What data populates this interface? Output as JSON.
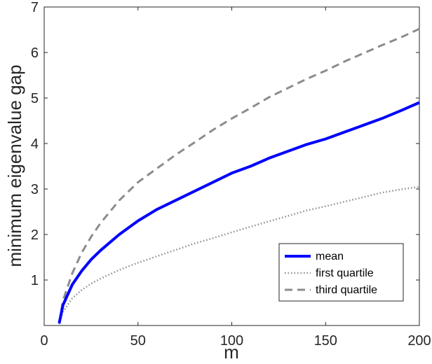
{
  "chart_data": {
    "type": "line",
    "title": "",
    "xlabel": "m",
    "ylabel": "minimum eigenvalue gap",
    "xlim": [
      0,
      200
    ],
    "ylim": [
      0,
      7
    ],
    "xticks": [
      0,
      50,
      100,
      150,
      200
    ],
    "yticks": [
      1,
      2,
      3,
      4,
      5,
      6,
      7
    ],
    "grid": false,
    "legend_position": "bottom-right",
    "series": [
      {
        "name": "mean",
        "color": "#0000ff",
        "style": "solid",
        "x": [
          8,
          10,
          15,
          20,
          25,
          30,
          40,
          50,
          60,
          70,
          80,
          90,
          100,
          110,
          120,
          130,
          140,
          150,
          160,
          170,
          180,
          190,
          200
        ],
        "y": [
          0.05,
          0.45,
          0.9,
          1.2,
          1.45,
          1.65,
          2.0,
          2.3,
          2.55,
          2.75,
          2.95,
          3.15,
          3.35,
          3.5,
          3.68,
          3.83,
          3.98,
          4.1,
          4.25,
          4.4,
          4.55,
          4.72,
          4.9
        ]
      },
      {
        "name": "first quartile",
        "color": "#8c8c8c",
        "style": "dotted",
        "x": [
          8,
          10,
          15,
          20,
          25,
          30,
          40,
          50,
          60,
          70,
          80,
          90,
          100,
          110,
          120,
          130,
          140,
          150,
          160,
          170,
          180,
          190,
          200
        ],
        "y": [
          0.03,
          0.3,
          0.6,
          0.78,
          0.92,
          1.03,
          1.22,
          1.38,
          1.52,
          1.66,
          1.8,
          1.92,
          2.05,
          2.17,
          2.29,
          2.41,
          2.53,
          2.62,
          2.72,
          2.82,
          2.92,
          2.99,
          3.05
        ]
      },
      {
        "name": "third quartile",
        "color": "#8c8c8c",
        "style": "dashed",
        "x": [
          8,
          10,
          15,
          20,
          25,
          30,
          40,
          50,
          60,
          70,
          80,
          90,
          100,
          110,
          120,
          130,
          140,
          150,
          160,
          170,
          180,
          190,
          200
        ],
        "y": [
          0.05,
          0.55,
          1.15,
          1.6,
          1.95,
          2.25,
          2.75,
          3.15,
          3.45,
          3.75,
          4.02,
          4.3,
          4.55,
          4.78,
          5.02,
          5.22,
          5.42,
          5.6,
          5.8,
          5.98,
          6.16,
          6.33,
          6.52
        ]
      }
    ]
  }
}
